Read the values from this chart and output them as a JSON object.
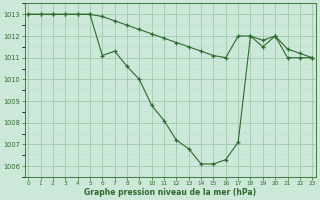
{
  "line1_x": [
    0,
    1,
    2,
    3,
    4,
    5,
    6,
    7,
    8,
    9,
    10,
    11,
    12,
    13,
    14,
    15,
    16,
    17,
    18,
    19,
    20,
    21,
    22,
    23
  ],
  "line1_y": [
    1013.0,
    1013.0,
    1013.0,
    1013.0,
    1013.0,
    1013.0,
    1011.1,
    1011.3,
    1010.6,
    1010.0,
    1008.8,
    1008.1,
    1007.2,
    1006.8,
    1006.1,
    1006.1,
    1006.3,
    1007.1,
    1012.0,
    1011.5,
    1012.0,
    1011.0,
    1011.0,
    1011.0
  ],
  "line2_x": [
    0,
    1,
    2,
    3,
    4,
    5,
    6,
    7,
    8,
    9,
    10,
    11,
    12,
    13,
    14,
    15,
    16,
    17,
    18,
    19,
    20,
    21,
    22,
    23
  ],
  "line2_y": [
    1013.0,
    1013.0,
    1013.0,
    1013.0,
    1013.0,
    1013.0,
    1012.9,
    1012.7,
    1012.5,
    1012.3,
    1012.1,
    1011.9,
    1011.7,
    1011.5,
    1011.3,
    1011.1,
    1011.0,
    1012.0,
    1012.0,
    1011.8,
    1012.0,
    1011.4,
    1011.2,
    1011.0
  ],
  "line_color": "#2d6a2d",
  "bg_color": "#cce8d8",
  "grid_minor_color": "#b8dcc8",
  "grid_major_color": "#88bb99",
  "xlabel": "Graphe pression niveau de la mer (hPa)",
  "xlim": [
    0,
    23
  ],
  "ylim": [
    1005.5,
    1013.5
  ],
  "yticks": [
    1006,
    1007,
    1008,
    1009,
    1010,
    1011,
    1012,
    1013
  ],
  "xticks": [
    0,
    1,
    2,
    3,
    4,
    5,
    6,
    7,
    8,
    9,
    10,
    11,
    12,
    13,
    14,
    15,
    16,
    17,
    18,
    19,
    20,
    21,
    22,
    23
  ]
}
